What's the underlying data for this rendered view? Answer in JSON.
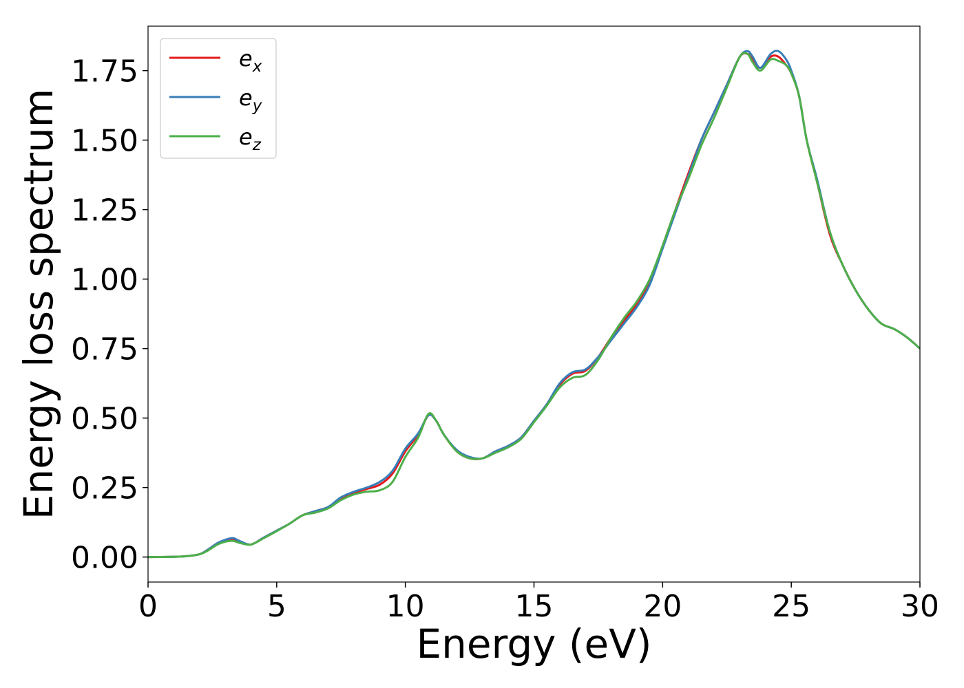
{
  "chart_data": {
    "type": "line",
    "title": "",
    "xlabel": "Energy (eV)",
    "ylabel": "Energy loss spectrum",
    "xlim": [
      0,
      30
    ],
    "ylim": [
      -0.09,
      1.91
    ],
    "xticks": [
      0,
      5,
      10,
      15,
      20,
      25,
      30
    ],
    "xtick_labels": [
      "0",
      "5",
      "10",
      "15",
      "20",
      "25",
      "30"
    ],
    "yticks": [
      0,
      0.25,
      0.5,
      0.75,
      1.0,
      1.25,
      1.5,
      1.75
    ],
    "ytick_labels": [
      "0.00",
      "0.25",
      "0.50",
      "0.75",
      "1.00",
      "1.25",
      "1.50",
      "1.75"
    ],
    "grid": false,
    "legend_position": "top-left",
    "x": [
      0,
      1,
      1.5,
      2,
      2.3,
      2.7,
      3.0,
      3.3,
      3.6,
      4.0,
      4.5,
      5.0,
      5.5,
      6.0,
      6.5,
      7.0,
      7.5,
      8.0,
      8.5,
      9.0,
      9.5,
      10.0,
      10.5,
      10.9,
      11.2,
      11.5,
      12.0,
      12.5,
      13.0,
      13.5,
      14.0,
      14.5,
      15.0,
      15.5,
      16.0,
      16.5,
      17.0,
      17.5,
      18.0,
      18.5,
      19.0,
      19.5,
      20.0,
      20.5,
      21.0,
      21.5,
      22.0,
      22.5,
      23.0,
      23.3,
      23.5,
      23.8,
      24.2,
      24.5,
      24.8,
      25.0,
      25.3,
      25.6,
      26.0,
      26.5,
      27.0,
      27.5,
      28.0,
      28.5,
      29.0,
      29.5,
      30.0
    ],
    "series": [
      {
        "name": "e_x",
        "color": "#e41a1c",
        "values": [
          0.0,
          0.001,
          0.003,
          0.01,
          0.025,
          0.05,
          0.06,
          0.065,
          0.055,
          0.045,
          0.07,
          0.095,
          0.12,
          0.15,
          0.165,
          0.18,
          0.21,
          0.23,
          0.245,
          0.26,
          0.3,
          0.38,
          0.44,
          0.51,
          0.49,
          0.44,
          0.38,
          0.355,
          0.355,
          0.38,
          0.4,
          0.43,
          0.49,
          0.55,
          0.62,
          0.66,
          0.67,
          0.72,
          0.79,
          0.85,
          0.91,
          0.99,
          1.12,
          1.25,
          1.38,
          1.5,
          1.6,
          1.7,
          1.8,
          1.81,
          1.79,
          1.76,
          1.8,
          1.8,
          1.77,
          1.74,
          1.66,
          1.5,
          1.35,
          1.16,
          1.05,
          0.96,
          0.89,
          0.84,
          0.82,
          0.79,
          0.75
        ]
      },
      {
        "name": "e_y",
        "color": "#377eb8",
        "values": [
          0.0,
          0.001,
          0.003,
          0.01,
          0.025,
          0.05,
          0.062,
          0.068,
          0.056,
          0.045,
          0.07,
          0.095,
          0.12,
          0.15,
          0.165,
          0.18,
          0.215,
          0.235,
          0.25,
          0.27,
          0.31,
          0.39,
          0.445,
          0.51,
          0.49,
          0.44,
          0.385,
          0.36,
          0.355,
          0.38,
          0.4,
          0.43,
          0.49,
          0.55,
          0.625,
          0.665,
          0.675,
          0.72,
          0.78,
          0.84,
          0.9,
          0.98,
          1.11,
          1.24,
          1.37,
          1.5,
          1.6,
          1.7,
          1.8,
          1.82,
          1.8,
          1.76,
          1.81,
          1.82,
          1.79,
          1.75,
          1.66,
          1.5,
          1.36,
          1.17,
          1.05,
          0.96,
          0.89,
          0.84,
          0.82,
          0.79,
          0.75
        ]
      },
      {
        "name": "e_z",
        "color": "#4daf4a",
        "values": [
          0.0,
          0.001,
          0.003,
          0.01,
          0.022,
          0.045,
          0.055,
          0.058,
          0.05,
          0.045,
          0.068,
          0.093,
          0.12,
          0.15,
          0.16,
          0.175,
          0.205,
          0.225,
          0.235,
          0.24,
          0.27,
          0.36,
          0.43,
          0.515,
          0.49,
          0.44,
          0.38,
          0.355,
          0.355,
          0.375,
          0.395,
          0.425,
          0.485,
          0.545,
          0.61,
          0.645,
          0.655,
          0.71,
          0.79,
          0.86,
          0.92,
          1.0,
          1.12,
          1.25,
          1.36,
          1.48,
          1.58,
          1.69,
          1.8,
          1.81,
          1.78,
          1.75,
          1.79,
          1.785,
          1.77,
          1.74,
          1.66,
          1.5,
          1.35,
          1.17,
          1.05,
          0.96,
          0.89,
          0.84,
          0.82,
          0.79,
          0.75
        ]
      }
    ]
  },
  "legend": {
    "items": [
      {
        "label": "e",
        "sub": "x"
      },
      {
        "label": "e",
        "sub": "y"
      },
      {
        "label": "e",
        "sub": "z"
      }
    ]
  }
}
